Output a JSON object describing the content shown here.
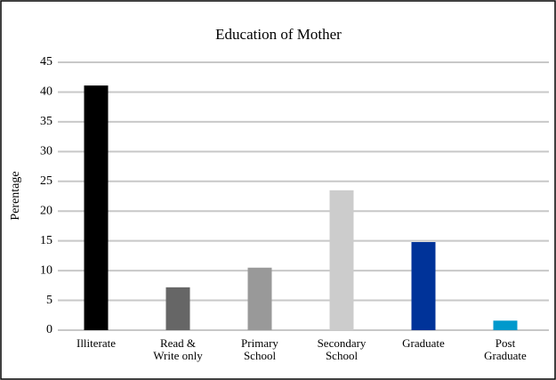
{
  "chart_data": {
    "type": "bar",
    "title": "Education of Mother",
    "y_label": "Perentage",
    "categories": [
      "Illiterate",
      "Read &\nWrite only",
      "Primary\nSchool",
      "Secondary\nSchool",
      "Graduate",
      "Post\nGraduate"
    ],
    "values": [
      41.1,
      7.2,
      10.5,
      23.5,
      14.8,
      1.6
    ],
    "colors": [
      "#000000",
      "#666666",
      "#999999",
      "#cccccc",
      "#003399",
      "#0099cc"
    ],
    "ylim": [
      0,
      45
    ],
    "yticks": [
      0,
      5,
      10,
      15,
      20,
      25,
      30,
      35,
      40,
      45
    ],
    "grid": true
  }
}
